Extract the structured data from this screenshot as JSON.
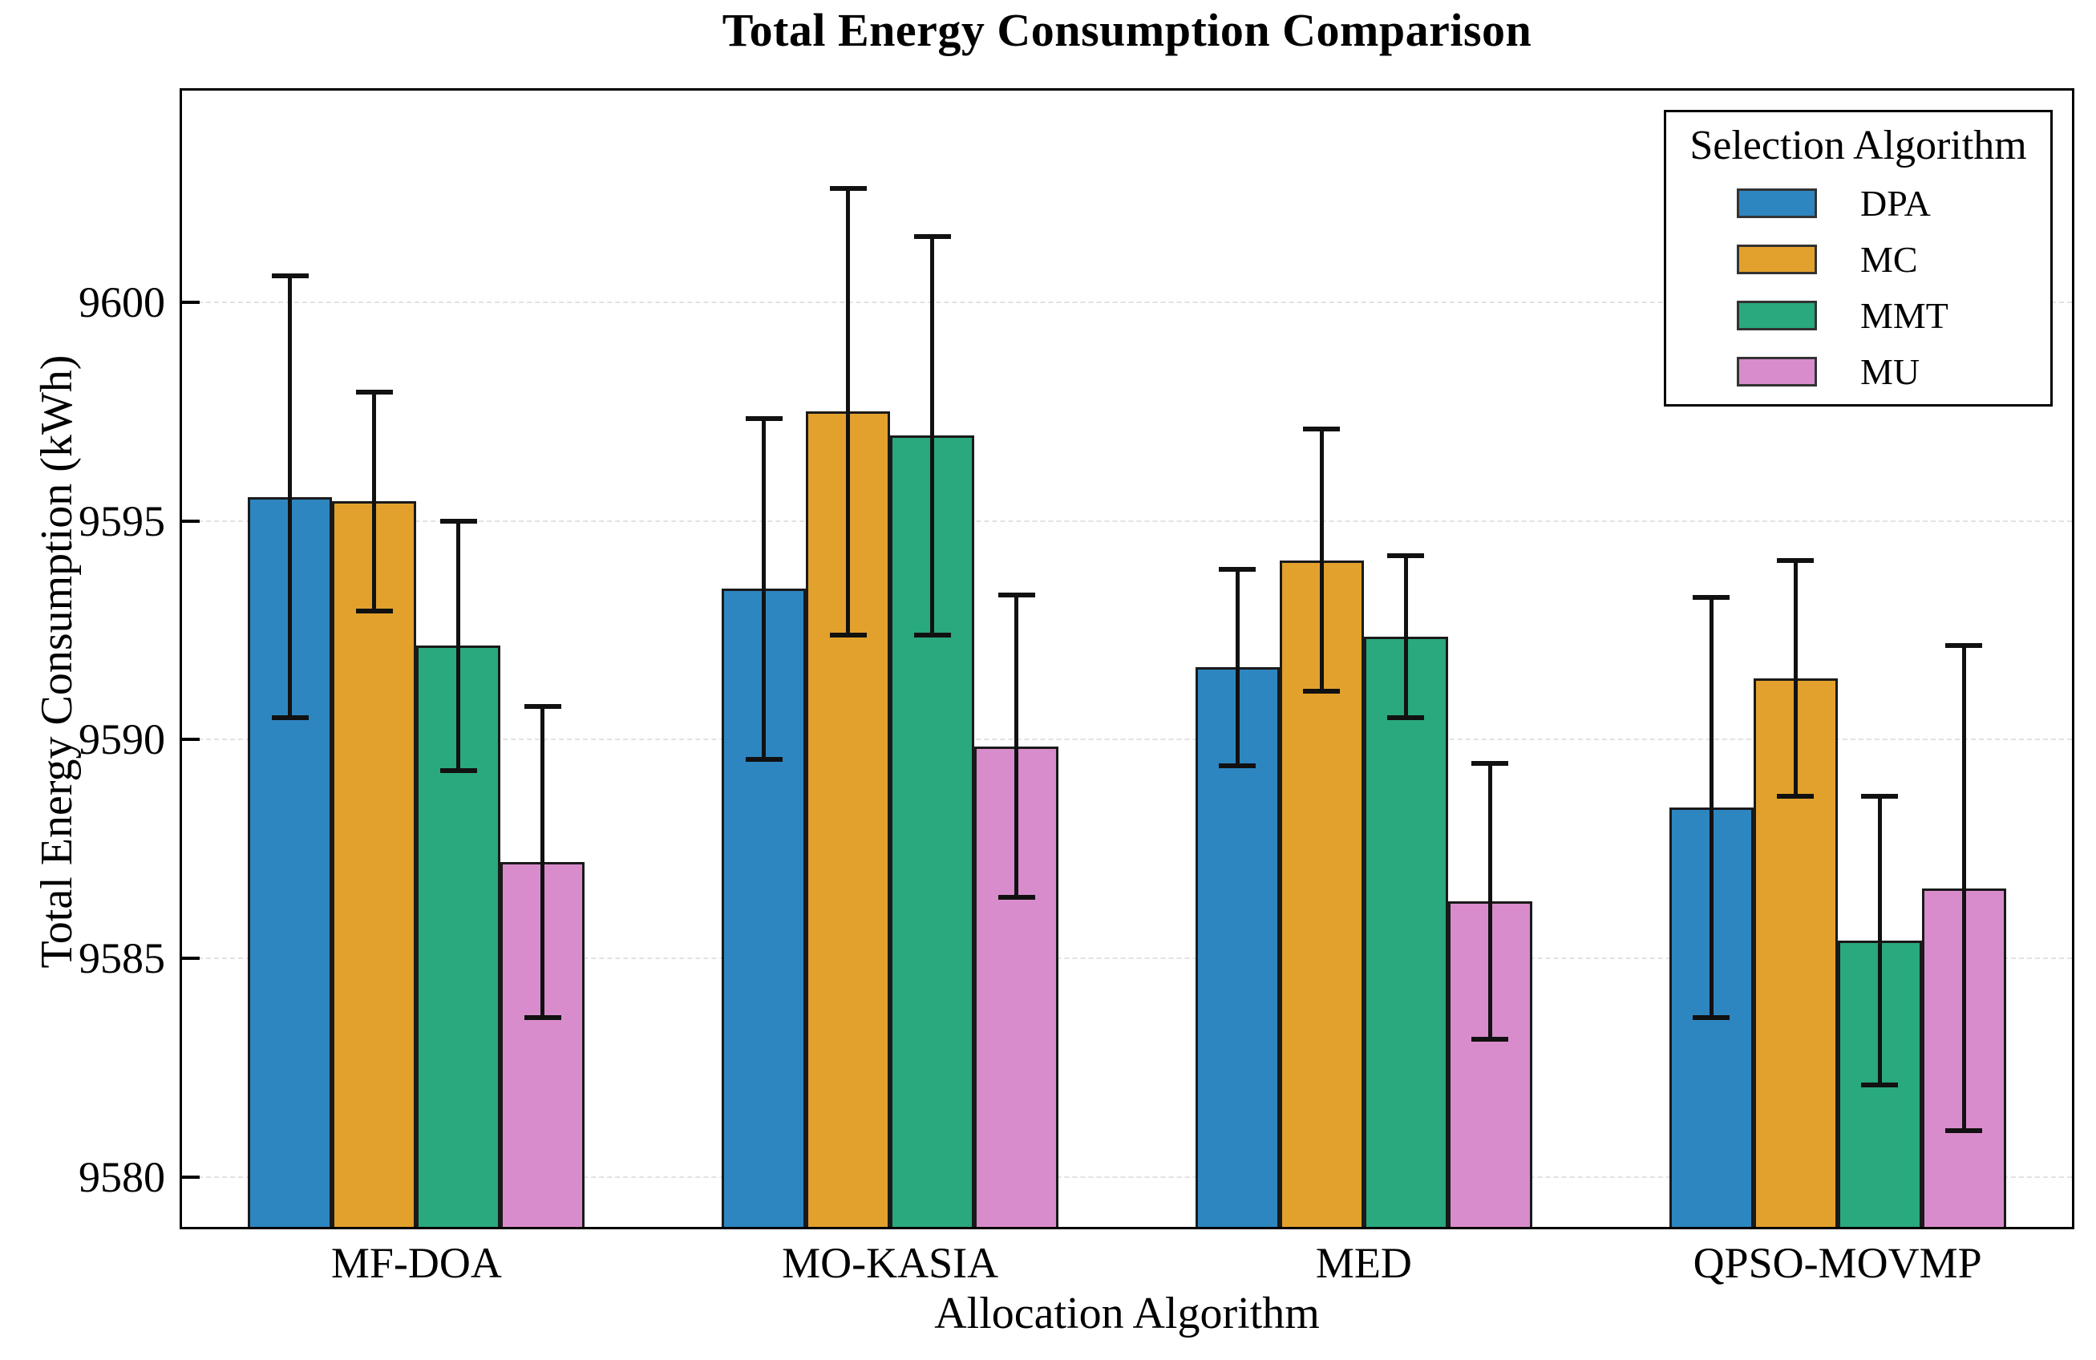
{
  "chart_data": {
    "type": "bar",
    "title": "Total Energy Consumption Comparison",
    "xlabel": "Allocation Algorithm",
    "ylabel": "Total Energy Consumption (kWh)",
    "categories": [
      "MF-DOA",
      "MO-KASIA",
      "MED",
      "QPSO-MOVMP"
    ],
    "legend_title": "Selection Algorithm",
    "legend_position": "upper right",
    "grid": "horizontal-dashed",
    "ylim": [
      9578.8,
      9604.9
    ],
    "y_ticks": [
      9580,
      9585,
      9590,
      9595,
      9600
    ],
    "error_bar_color": "#111111",
    "series": [
      {
        "name": "DPA",
        "color": "#2e86c0",
        "values": [
          9595.55,
          9593.45,
          9591.65,
          9588.45
        ],
        "errors": [
          5.05,
          3.9,
          2.25,
          4.8
        ]
      },
      {
        "name": "MC",
        "color": "#e2a12d",
        "values": [
          9595.45,
          9597.5,
          9594.1,
          9591.4
        ],
        "errors": [
          2.5,
          5.1,
          3.0,
          2.7
        ]
      },
      {
        "name": "MMT",
        "color": "#2aa87e",
        "values": [
          9592.15,
          9596.95,
          9592.35,
          9585.4
        ],
        "errors": [
          2.85,
          4.55,
          1.85,
          3.3
        ]
      },
      {
        "name": "MU",
        "color": "#d98ccb",
        "values": [
          9587.2,
          9589.85,
          9586.3,
          9586.6
        ],
        "errors": [
          3.55,
          3.45,
          3.15,
          5.55
        ]
      }
    ]
  }
}
